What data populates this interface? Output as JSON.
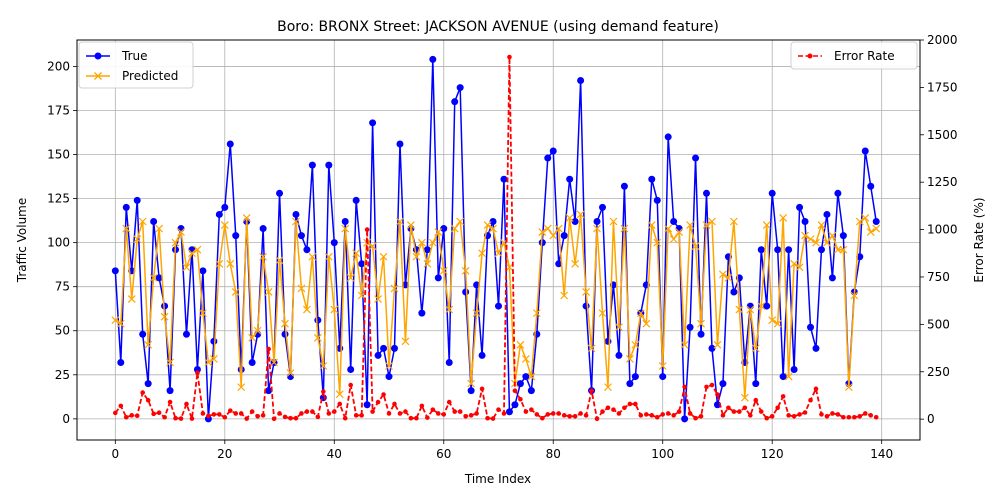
{
  "chart_data": {
    "type": "line",
    "title": "Boro: BRONX Street: JACKSON AVENUE (using demand feature)",
    "xlabel": "Time Index",
    "ylabel": "Traffic Volume",
    "y2label": "Error Rate (%)",
    "xlim": [
      -7,
      147
    ],
    "ylim": [
      -12,
      215
    ],
    "y2lim": [
      -110,
      2000
    ],
    "x_ticks": [
      0,
      20,
      40,
      60,
      80,
      100,
      120,
      140
    ],
    "y_ticks": [
      0,
      25,
      50,
      75,
      100,
      125,
      150,
      175,
      200
    ],
    "y2_ticks": [
      0,
      250,
      500,
      750,
      1000,
      1250,
      1500,
      1750,
      2000
    ],
    "grid": true,
    "legend_left": "upper-left",
    "legend_right": "upper-right",
    "colors": {
      "true": "#0000ff",
      "predicted": "#ffa500",
      "error": "#ff0000"
    },
    "series": [
      {
        "name": "True",
        "axis": "left",
        "values": [
          84,
          32,
          120,
          84,
          124,
          48,
          20,
          112,
          80,
          64,
          16,
          96,
          108,
          48,
          96,
          28,
          84,
          0,
          44,
          116,
          120,
          156,
          104,
          28,
          112,
          32,
          48,
          108,
          16,
          32,
          128,
          48,
          24,
          116,
          104,
          96,
          144,
          56,
          12,
          144,
          100,
          40,
          112,
          28,
          124,
          88,
          8,
          168,
          36,
          40,
          24,
          40,
          156,
          76,
          108,
          96,
          60,
          96,
          204,
          80,
          108,
          32,
          180,
          188,
          72,
          16,
          76,
          36,
          104,
          112,
          64,
          136,
          4,
          8,
          20,
          24,
          16,
          48,
          100,
          148,
          152,
          88,
          104,
          136,
          112,
          192,
          64,
          16,
          112,
          120,
          44,
          76,
          36,
          132,
          20,
          24,
          60,
          76,
          136,
          124,
          24,
          160,
          112,
          108,
          0,
          52,
          148,
          48,
          128,
          40,
          8,
          20,
          92,
          72,
          80,
          32,
          64,
          20,
          96,
          64,
          128,
          96,
          24,
          96,
          28,
          120,
          112,
          52,
          40,
          96,
          116,
          80,
          128,
          104,
          20,
          72,
          92,
          152,
          132,
          112
        ]
      },
      {
        "name": "Predicted",
        "axis": "left",
        "values": [
          56,
          54,
          108,
          68,
          102,
          112,
          42,
          80,
          108,
          58,
          32,
          100,
          106,
          86,
          94,
          96,
          60,
          32,
          34,
          88,
          110,
          88,
          72,
          18,
          114,
          46,
          50,
          92,
          72,
          32,
          90,
          54,
          26,
          112,
          74,
          62,
          92,
          46,
          30,
          92,
          62,
          14,
          108,
          80,
          94,
          70,
          100,
          98,
          68,
          92,
          30,
          74,
          112,
          44,
          110,
          92,
          100,
          88,
          100,
          106,
          84,
          62,
          108,
          112,
          84,
          20,
          60,
          94,
          110,
          108,
          94,
          100,
          86,
          20,
          42,
          34,
          24,
          60,
          106,
          108,
          104,
          108,
          70,
          114,
          88,
          116,
          72,
          40,
          108,
          60,
          18,
          112,
          52,
          108,
          34,
          42,
          60,
          54,
          110,
          100,
          30,
          108,
          102,
          106,
          42,
          110,
          98,
          54,
          110,
          112,
          42,
          82,
          80,
          112,
          62,
          12,
          62,
          40,
          64,
          110,
          56,
          54,
          114,
          24,
          88,
          86,
          104,
          102,
          100,
          110,
          100,
          104,
          96,
          96,
          18,
          70,
          112,
          114,
          106,
          108
        ]
      },
      {
        "name": "Error Rate",
        "axis": "right",
        "values": [
          33,
          70,
          10,
          20,
          18,
          140,
          100,
          28,
          34,
          10,
          90,
          5,
          3,
          80,
          3,
          245,
          30,
          17,
          25,
          25,
          10,
          45,
          30,
          30,
          3,
          40,
          15,
          20,
          370,
          2,
          30,
          12,
          5,
          5,
          30,
          40,
          40,
          12,
          145,
          30,
          40,
          80,
          5,
          180,
          20,
          20,
          1000,
          40,
          90,
          130,
          30,
          80,
          30,
          40,
          5,
          5,
          70,
          8,
          50,
          30,
          25,
          90,
          40,
          40,
          15,
          20,
          30,
          160,
          5,
          3,
          50,
          30,
          1910,
          150,
          105,
          40,
          50,
          25,
          5,
          25,
          30,
          30,
          20,
          15,
          15,
          30,
          20,
          150,
          2,
          40,
          60,
          50,
          30,
          60,
          80,
          80,
          20,
          25,
          20,
          10,
          25,
          30,
          20,
          40,
          170,
          30,
          5,
          15,
          170,
          180,
          130,
          20,
          60,
          40,
          40,
          60,
          20,
          100,
          40,
          5,
          15,
          60,
          120,
          20,
          15,
          25,
          35,
          100,
          160,
          25,
          15,
          30,
          25,
          10,
          10,
          10,
          15,
          30,
          20,
          10
        ]
      }
    ]
  }
}
